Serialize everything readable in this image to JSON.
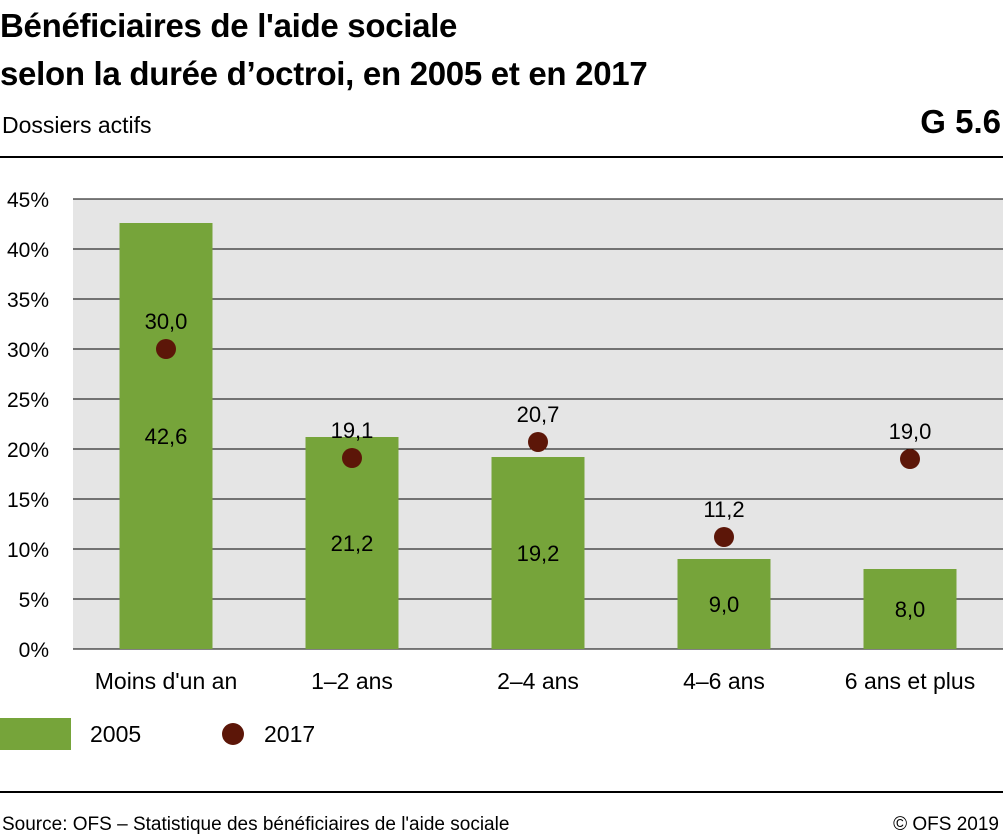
{
  "header": {
    "title_line1": "Bénéficiaires de l'aide sociale",
    "title_line2": "selon la durée d’octroi, en 2005 et en 2017",
    "subtitle": "Dossiers actifs",
    "chart_number": "G 5.6"
  },
  "colors": {
    "bar_2005": "#76a43a",
    "dot_2017": "#5c1608",
    "plot_background": "#e5e5e5",
    "gridline": "#000000"
  },
  "chart_data": {
    "type": "bar",
    "categories": [
      "Moins d'un an",
      "1–2 ans",
      "2–4 ans",
      "4–6 ans",
      "6 ans et plus"
    ],
    "series": [
      {
        "name": "2005",
        "mark": "bar",
        "values": [
          42.6,
          21.2,
          19.2,
          9.0,
          8.0
        ],
        "labels": [
          "42,6",
          "21,2",
          "19,2",
          "9,0",
          "8,0"
        ]
      },
      {
        "name": "2017",
        "mark": "dot",
        "values": [
          30.0,
          19.1,
          20.7,
          11.2,
          19.0
        ],
        "labels": [
          "30,0",
          "19,1",
          "20,7",
          "11,2",
          "19,0"
        ]
      }
    ],
    "ylim": [
      0,
      45
    ],
    "yticks": [
      0,
      5,
      10,
      15,
      20,
      25,
      30,
      35,
      40,
      45
    ],
    "ytick_labels": [
      "0%",
      "5%",
      "10%",
      "15%",
      "20%",
      "25%",
      "30%",
      "35%",
      "40%",
      "45%"
    ],
    "grid": true,
    "legend_position": "bottom-left"
  },
  "legend": {
    "item_2005": "2005",
    "item_2017": "2017"
  },
  "footer": {
    "source": "Source: OFS – Statistique des bénéficiaires de l'aide sociale",
    "copyright": "© OFS 2019"
  }
}
